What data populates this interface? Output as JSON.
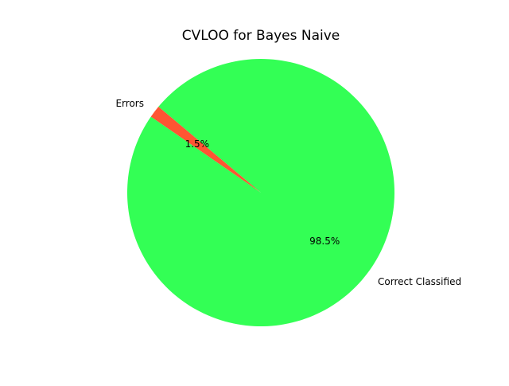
{
  "chart_data": {
    "type": "pie",
    "title": "CVLOO for Bayes Naive",
    "slices": [
      {
        "label": "Errors",
        "value": 1.5,
        "display": "1.5%",
        "color": "#ff5533"
      },
      {
        "label": "Correct Classified",
        "value": 98.5,
        "display": "98.5%",
        "color": "#33ff55"
      }
    ],
    "start_angle_deg": 140,
    "direction": "counterclockwise",
    "legend": "none"
  }
}
